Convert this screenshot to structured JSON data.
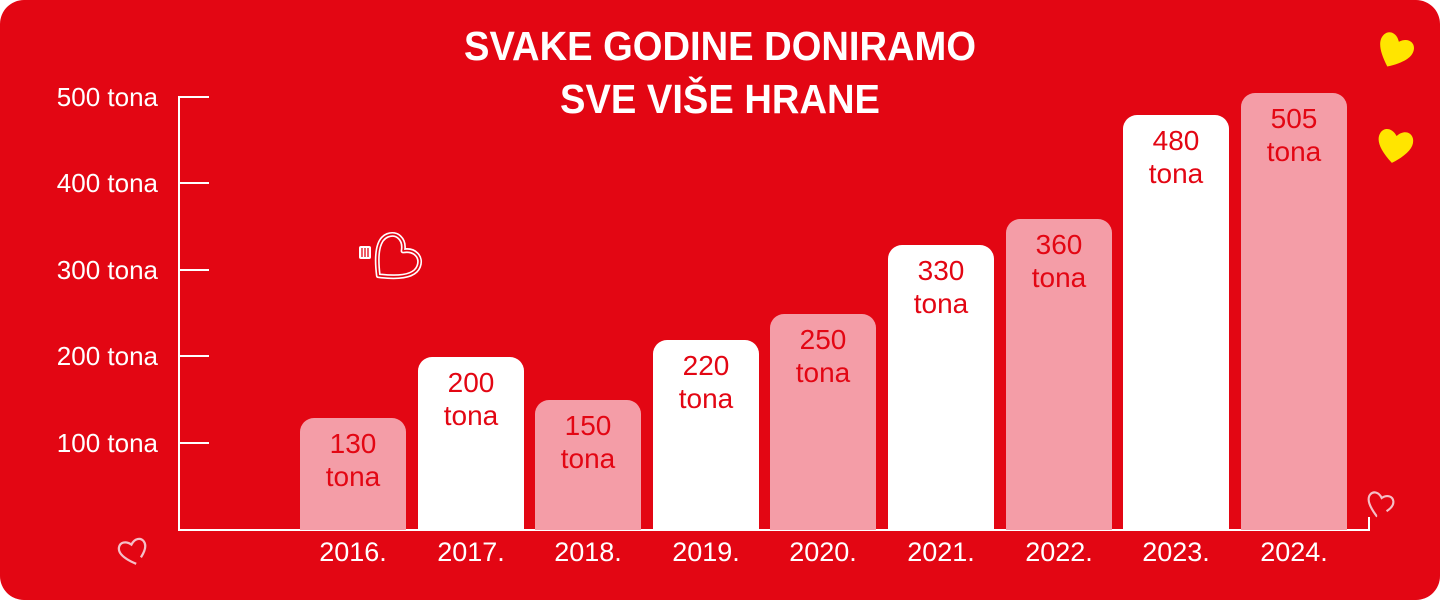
{
  "title": {
    "line1": "SVAKE GODINE DONIRAMO",
    "line2": "SVE VIŠE HRANE"
  },
  "chart_data": {
    "type": "bar",
    "title": "SVAKE GODINE DONIRAMO SVE VIŠE HRANE",
    "categories": [
      "2016.",
      "2017.",
      "2018.",
      "2019.",
      "2020.",
      "2021.",
      "2022.",
      "2023.",
      "2024."
    ],
    "values": [
      130,
      200,
      150,
      220,
      250,
      330,
      360,
      480,
      505
    ],
    "unit": "tona",
    "bar_value_labels": [
      "130 tona",
      "200 tona",
      "150 tona",
      "220 tona",
      "250 tona",
      "330 tona",
      "360 tona",
      "480 tona",
      "505 tona"
    ],
    "bar_colors": [
      "pink",
      "white",
      "pink",
      "white",
      "pink",
      "white",
      "pink",
      "white",
      "pink"
    ],
    "y_ticks": [
      {
        "value": 100,
        "label": "100 tona"
      },
      {
        "value": 200,
        "label": "200 tona"
      },
      {
        "value": 300,
        "label": "300 tona"
      },
      {
        "value": 400,
        "label": "400 tona"
      },
      {
        "value": 500,
        "label": "500 tona"
      }
    ],
    "ylim": [
      0,
      540
    ],
    "grid": false,
    "legend": false,
    "value_labels_position": "inside-top"
  },
  "colors": {
    "background": "#E30613",
    "bar_pink": "#F49DA7",
    "bar_white": "#FFFFFF",
    "value_label_red": "#E30613",
    "text_white": "#FFFFFF",
    "heart_yellow": "#FFE500",
    "sketch_heart_pink": "#F4BFC7",
    "axis_white": "#FFFFFF"
  },
  "icons": {
    "heart_wire_logo": {
      "name": "heart-wire-logo-icon",
      "color": "#FFFFFF"
    },
    "yellow_heart_top": {
      "name": "yellow-heart-icon",
      "color": "#FFE500"
    },
    "yellow_heart_bottom": {
      "name": "yellow-heart-icon",
      "color": "#FFE500"
    },
    "sketch_heart_bottom_left": {
      "name": "sketch-heart-icon",
      "color": "#F4BFC7"
    },
    "sketch_heart_bottom_right": {
      "name": "sketch-heart-icon",
      "color": "#F4BFC7"
    }
  }
}
